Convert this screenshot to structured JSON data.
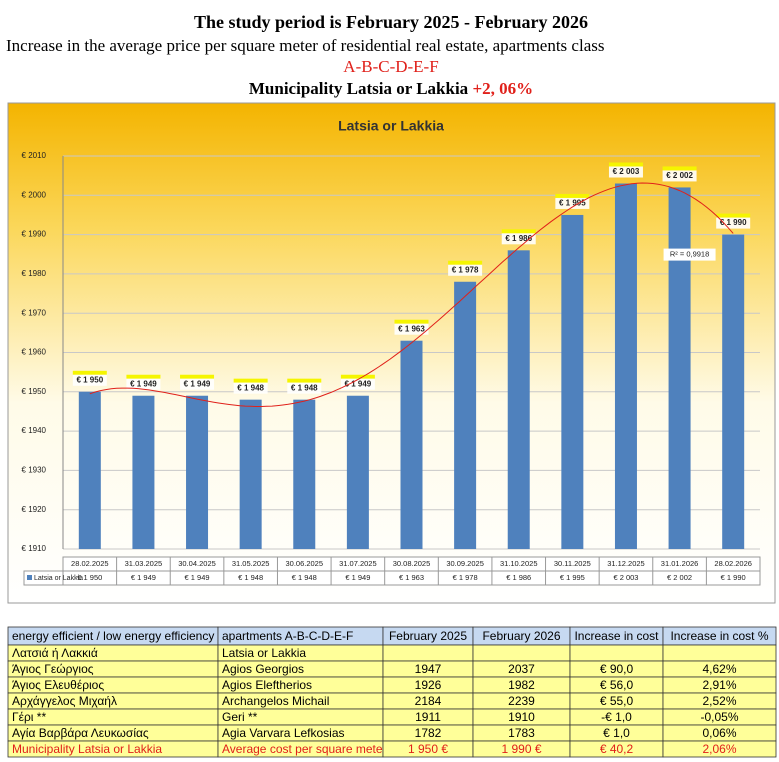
{
  "header": {
    "title": "The study period is February 2025 - February 2026",
    "subtitle": "Increase in the average price per square meter of residential real estate, apartments class",
    "classes": "A-B-C-D-E-F",
    "municipality": "Municipality Latsia or Lakkia",
    "change": "+2, 06%"
  },
  "chart_data": {
    "type": "bar",
    "title": "Latsia or Lakkia",
    "categories": [
      "28.02.2025",
      "31.03.2025",
      "30.04.2025",
      "31.05.2025",
      "30.06.2025",
      "31.07.2025",
      "30.08.2025",
      "30.09.2025",
      "31.10.2025",
      "30.11.2025",
      "31.12.2025",
      "31.01.2026",
      "28.02.2026"
    ],
    "series": [
      {
        "name": "Latsia or Lakkia",
        "color": "#4f81bd",
        "values": [
          1950,
          1949,
          1949,
          1948,
          1948,
          1949,
          1963,
          1978,
          1986,
          1995,
          2003,
          2002,
          1990
        ],
        "value_labels": [
          "€ 1 950",
          "€ 1 949",
          "€ 1 949",
          "€ 1 948",
          "€ 1 948",
          "€ 1 949",
          "€ 1 963",
          "€ 1 978",
          "€ 1 986",
          "€ 1 995",
          "€ 2 003",
          "€ 2 002",
          "€ 1 990"
        ]
      }
    ],
    "trendline_label": "R² = 0,9918",
    "trendline_color": "#e0201a",
    "ylim": [
      1910,
      2010
    ],
    "yticks": [
      {
        "value": 1910,
        "label": "€ 1910"
      },
      {
        "value": 1920,
        "label": "€ 1920"
      },
      {
        "value": 1930,
        "label": "€ 1930"
      },
      {
        "value": 1940,
        "label": "€ 1940"
      },
      {
        "value": 1950,
        "label": "€ 1950"
      },
      {
        "value": 1960,
        "label": "€ 1960"
      },
      {
        "value": 1970,
        "label": "€ 1970"
      },
      {
        "value": 1980,
        "label": "€ 1980"
      },
      {
        "value": 1990,
        "label": "€ 1990"
      },
      {
        "value": 2000,
        "label": "€ 2000"
      },
      {
        "value": 2010,
        "label": "€ 2010"
      }
    ],
    "grid": true
  },
  "table": {
    "columns": [
      "energy efficient / low energy efficiency",
      "apartments A-B-C-D-E-F",
      "February 2025",
      "February 2026",
      "Increase in cost",
      "Increase in cost  %"
    ],
    "rows": [
      [
        "Λατσιά ή Λακκιά",
        "Latsia or Lakkia"
      ],
      [
        "Άγιος Γεώργιος",
        "Agios Georgios",
        "1947",
        "2037",
        "€ 90,0",
        "4,62%"
      ],
      [
        "Άγιος Ελευθέριος",
        "Agios Eleftherios",
        "1926",
        "1982",
        "€ 56,0",
        "2,91%"
      ],
      [
        "Αρχάγγελος Μιχαήλ",
        "Archangelos Michail",
        "2184",
        "2239",
        "€ 55,0",
        "2,52%"
      ],
      [
        "Γέρι **",
        "Geri **",
        "1911",
        "1910",
        "-€ 1,0",
        "-0,05%"
      ],
      [
        "Αγία Βαρβάρα Λευκωσίας",
        "Agia Varvara Lefkosias",
        "1782",
        "1783",
        "€ 1,0",
        "0,06%"
      ],
      [
        "Municipality  Latsia or Lakkia",
        "Average cost per square meter",
        "1 950 €",
        "1 990 €",
        "€ 40,2",
        "2,06%"
      ]
    ]
  }
}
